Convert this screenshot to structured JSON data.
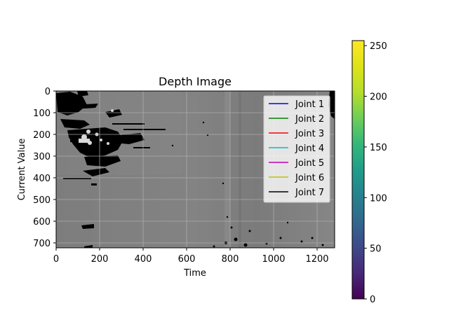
{
  "chart_data": [
    {
      "type": "heatmap",
      "title": "Depth Image",
      "xlabel": "Time",
      "ylabel": "Current Value",
      "xlim": [
        0,
        1280
      ],
      "ylim": [
        720,
        0
      ],
      "x_ticks": [
        0,
        200,
        400,
        600,
        800,
        1000,
        1200
      ],
      "y_ticks": [
        0,
        100,
        200,
        300,
        400,
        500,
        600,
        700
      ],
      "grid": true,
      "legend_position": "upper-right",
      "series": [
        {
          "name": "Joint 1",
          "color": "#0000ff"
        },
        {
          "name": "Joint 2",
          "color": "#008000"
        },
        {
          "name": "Joint 3",
          "color": "#ff0000"
        },
        {
          "name": "Joint 4",
          "color": "#00bfbf"
        },
        {
          "name": "Joint 5",
          "color": "#bf00bf"
        },
        {
          "name": "Joint 6",
          "color": "#bfbf00"
        },
        {
          "name": "Joint 7",
          "color": "#000000"
        }
      ]
    },
    {
      "type": "colorbar",
      "colormap": "viridis",
      "range": [
        0,
        255
      ],
      "ticks": [
        0,
        50,
        100,
        150,
        200,
        250
      ]
    }
  ]
}
